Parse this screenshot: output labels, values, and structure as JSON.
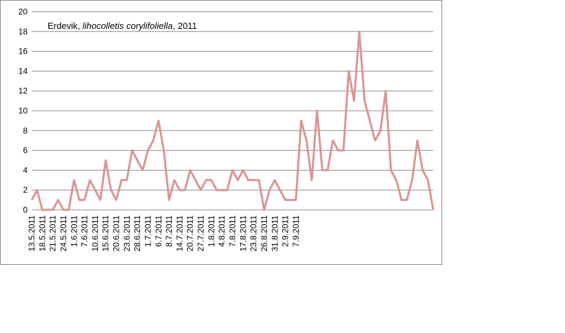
{
  "chart_data": {
    "type": "line",
    "title_parts": [
      "Erdevik, ",
      "lihocolletis corylifoliella",
      ", 2011"
    ],
    "xlabel": "",
    "ylabel": "",
    "ylim": [
      0,
      20
    ],
    "yticks": [
      0,
      2,
      4,
      6,
      8,
      10,
      12,
      14,
      16,
      18,
      20
    ],
    "grid": true,
    "legend": "none",
    "color": "#d99594",
    "tick_labels": [
      "13.5.2011",
      "18.5.2011",
      "21.5.2011",
      "24.5.2011",
      "1.6.2011",
      "7.6.2011",
      "10.6.2011",
      "15.6.2011",
      "20.6.2011",
      "23.6.2011",
      "28.6.2011",
      "1.7.2011",
      "6.7.2011",
      "8.7.2011",
      "14.7.2011",
      "20.7.2011",
      "27.7.2011",
      "1.8.2011",
      "4.8.2011",
      "7.8.2011",
      "17.8.2011",
      "23.8.2011",
      "26.8.2011",
      "31.8.2011",
      "2.9.2011",
      "7.9.2011"
    ],
    "tick_label_positions": [
      0,
      2,
      4,
      6,
      8,
      10,
      12,
      14,
      16,
      18,
      20,
      22,
      24,
      26,
      28,
      30,
      32,
      34,
      36,
      38,
      40,
      42,
      44,
      46,
      48,
      50
    ],
    "values": [
      1,
      2,
      0,
      0,
      0,
      1,
      0,
      0,
      3,
      1,
      1,
      3,
      2,
      1,
      5,
      2,
      1,
      3,
      3,
      6,
      5,
      4,
      6,
      7,
      9,
      6,
      1,
      3,
      2,
      2,
      4,
      3,
      2,
      3,
      3,
      2,
      2,
      2,
      4,
      3,
      4,
      3,
      3,
      3,
      0,
      2,
      3,
      2,
      1,
      1,
      1,
      9,
      7,
      3,
      10,
      4,
      4,
      7,
      6,
      6,
      14,
      11,
      18,
      11,
      9,
      7,
      8,
      12,
      4,
      3,
      1,
      1,
      3,
      7,
      4,
      3,
      0
    ]
  }
}
